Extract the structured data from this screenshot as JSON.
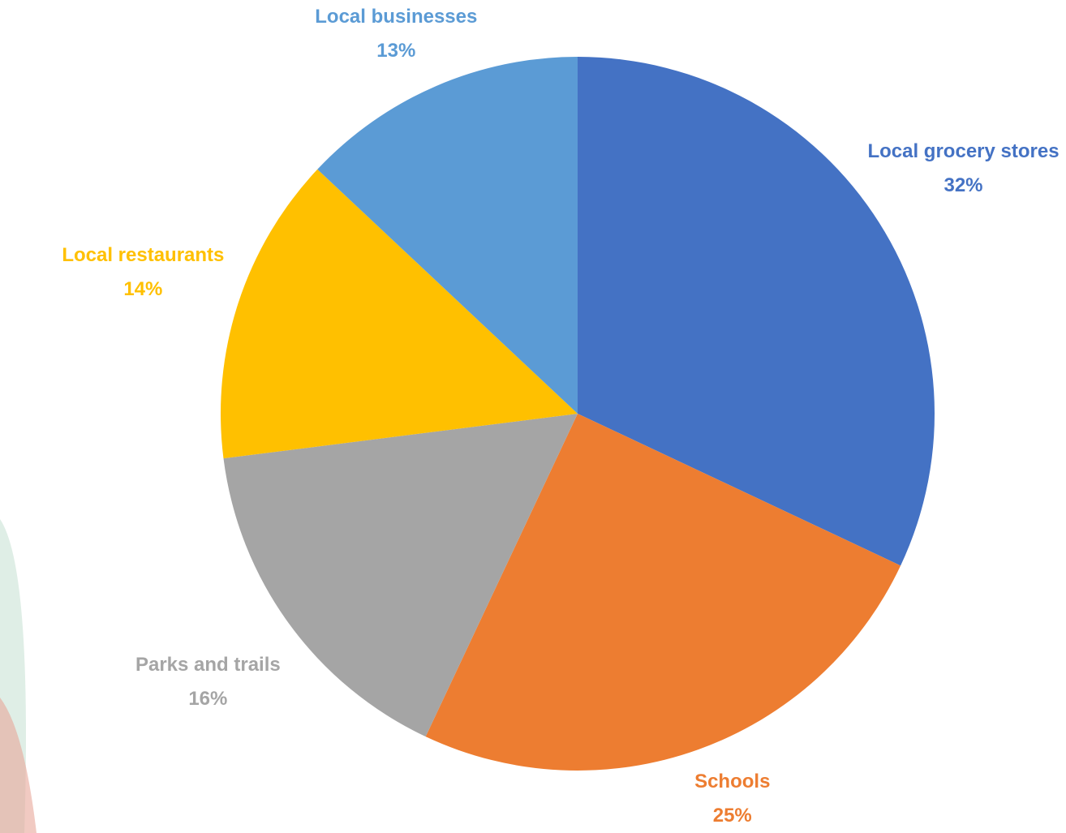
{
  "chart_data": {
    "type": "pie",
    "categories": [
      "Local grocery stores",
      "Schools",
      "Parks and trails",
      "Local restaurants",
      "Local businesses"
    ],
    "values": [
      32,
      25,
      16,
      14,
      13
    ],
    "value_labels": [
      "32%",
      "25%",
      "16%",
      "14%",
      "13%"
    ],
    "colors": [
      "#4472c4",
      "#ed7d31",
      "#a5a5a5",
      "#ffc000",
      "#5b9bd5"
    ]
  }
}
